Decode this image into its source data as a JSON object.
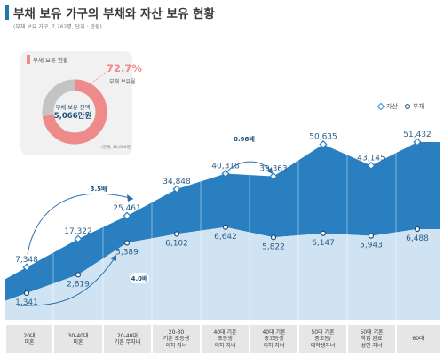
{
  "header": {
    "title": "부채 보유 가구의 부채와 자산 보유 현황",
    "subtitle": "(부채 보유 가구, 7,262명, 단위 : 만원)"
  },
  "inset": {
    "title": "부채 보유 현황",
    "percent_label": "72.7%",
    "percent_caption": "부채 보유율",
    "percent_value": 72.7,
    "center_line1": "부채 보유 잔액",
    "center_line2": "5,066만원",
    "note": "(전체, 10,000명)",
    "colors": {
      "held": "#ef8a8a",
      "rest": "#c4c4c4"
    }
  },
  "legend": {
    "asset": "자산",
    "debt": "부채"
  },
  "annotations": {
    "ratio_35": "3.5배",
    "ratio_40": "4.0배",
    "ratio_098": "0.98배"
  },
  "chart_data": {
    "type": "area",
    "categories": [
      "20대\n미혼",
      "30-40대\n미혼",
      "20-40대\n기혼 무자녀",
      "20-30\n기혼 초등생\n이하 자녀",
      "40대 기혼\n초등생\n이하 자녀",
      "40대 기혼\n중고등생\n이하 자녀",
      "50대 기혼\n중고등/\n대학생자녀",
      "50대 기혼\n학업 완료\n성인 자녀",
      "60대"
    ],
    "series": [
      {
        "name": "자산",
        "values": [
          7348,
          17322,
          25461,
          34848,
          40318,
          39363,
          50635,
          43145,
          51432
        ],
        "labels": [
          "7,348",
          "17,322",
          "25,461",
          "34,848",
          "40,318",
          "39,363",
          "50,635",
          "43,145",
          "51,432"
        ],
        "color": "#2a7fc0"
      },
      {
        "name": "부채",
        "values": [
          1341,
          2819,
          5389,
          6102,
          6642,
          5822,
          6147,
          5943,
          6488
        ],
        "labels": [
          "1,341",
          "2,819",
          "5,389",
          "6,102",
          "6,642",
          "5,822",
          "6,147",
          "5,943",
          "6,488"
        ],
        "color": "#cfe3f2"
      }
    ]
  }
}
